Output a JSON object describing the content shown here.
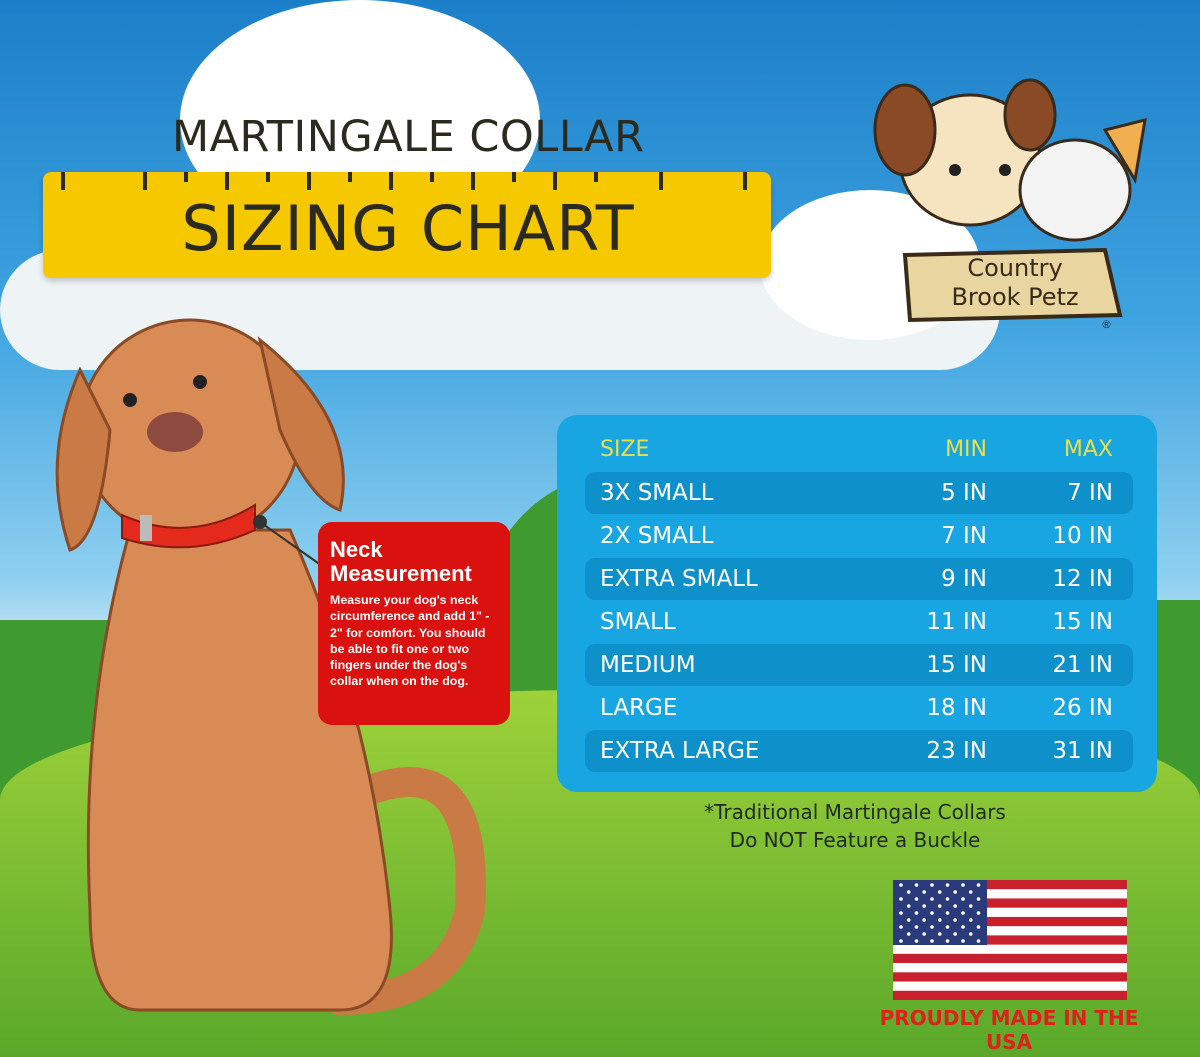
{
  "title": {
    "line1": "MARTINGALE COLLAR",
    "line2": "SIZING CHART"
  },
  "logo": {
    "text": "Country Brook Petz",
    "registered": "®"
  },
  "neck_box": {
    "heading": "Neck Measurement",
    "body": "Measure your dog's neck circumference and add 1\" - 2\" for comfort. You should be able to fit one or two fingers under the dog's collar when on the dog."
  },
  "table": {
    "headers": [
      "SIZE",
      "MIN",
      "MAX"
    ],
    "rows": [
      [
        "3X SMALL",
        "5 IN",
        "7 IN"
      ],
      [
        "2X SMALL",
        "7 IN",
        "10 IN"
      ],
      [
        "EXTRA SMALL",
        "9 IN",
        "12 IN"
      ],
      [
        "SMALL",
        "11 IN",
        "15 IN"
      ],
      [
        "MEDIUM",
        "15 IN",
        "21 IN"
      ],
      [
        "LARGE",
        "18 IN",
        "26 IN"
      ],
      [
        "EXTRA LARGE",
        "23 IN",
        "31 IN"
      ]
    ]
  },
  "note": {
    "line1": "*Traditional Martingale Collars",
    "line2": "Do NOT Feature a Buckle"
  },
  "footer": {
    "made_in": "PROUDLY MADE IN THE USA"
  },
  "colors": {
    "ruler": "#f5c800",
    "table": "#18a6e2",
    "neck_box": "#d9120f",
    "made_in": "#e0201c"
  }
}
